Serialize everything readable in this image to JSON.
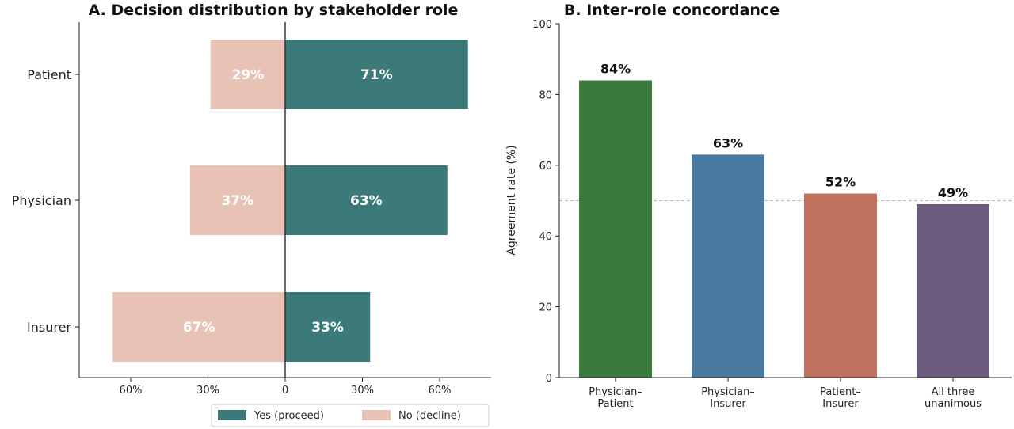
{
  "chart_data": [
    {
      "type": "bar",
      "orientation": "horizontal-diverging",
      "title": "A. Decision distribution by stakeholder role",
      "categories": [
        "Patient",
        "Physician",
        "Insurer"
      ],
      "series": [
        {
          "name": "Yes (proceed)",
          "values": [
            71,
            63,
            33
          ],
          "color": "#3b7a78"
        },
        {
          "name": "No (decline)",
          "values": [
            29,
            37,
            67
          ],
          "color": "#e8c3b5"
        }
      ],
      "xticks": [
        "60%",
        "30%",
        "0",
        "30%",
        "60%"
      ],
      "xtick_values": [
        -60,
        -30,
        0,
        30,
        60
      ],
      "xlim": [
        -80,
        80
      ],
      "legend_position": "bottom"
    },
    {
      "type": "bar",
      "title": "B. Inter-role concordance",
      "categories": [
        [
          "Physician–",
          "Patient"
        ],
        [
          "Physician–",
          "Insurer"
        ],
        [
          "Patient–",
          "Insurer"
        ],
        [
          "All three",
          "unanimous"
        ]
      ],
      "values": [
        84,
        63,
        52,
        49
      ],
      "value_labels": [
        "84%",
        "63%",
        "52%",
        "49%"
      ],
      "colors": [
        "#3b7a3d",
        "#4a7aa0",
        "#c0725e",
        "#6a5a7c"
      ],
      "ylabel": "Agreement rate (%)",
      "ylim": [
        0,
        100
      ],
      "yticks": [
        0,
        20,
        40,
        60,
        80,
        100
      ],
      "reference_line": 50,
      "grid": false
    }
  ]
}
